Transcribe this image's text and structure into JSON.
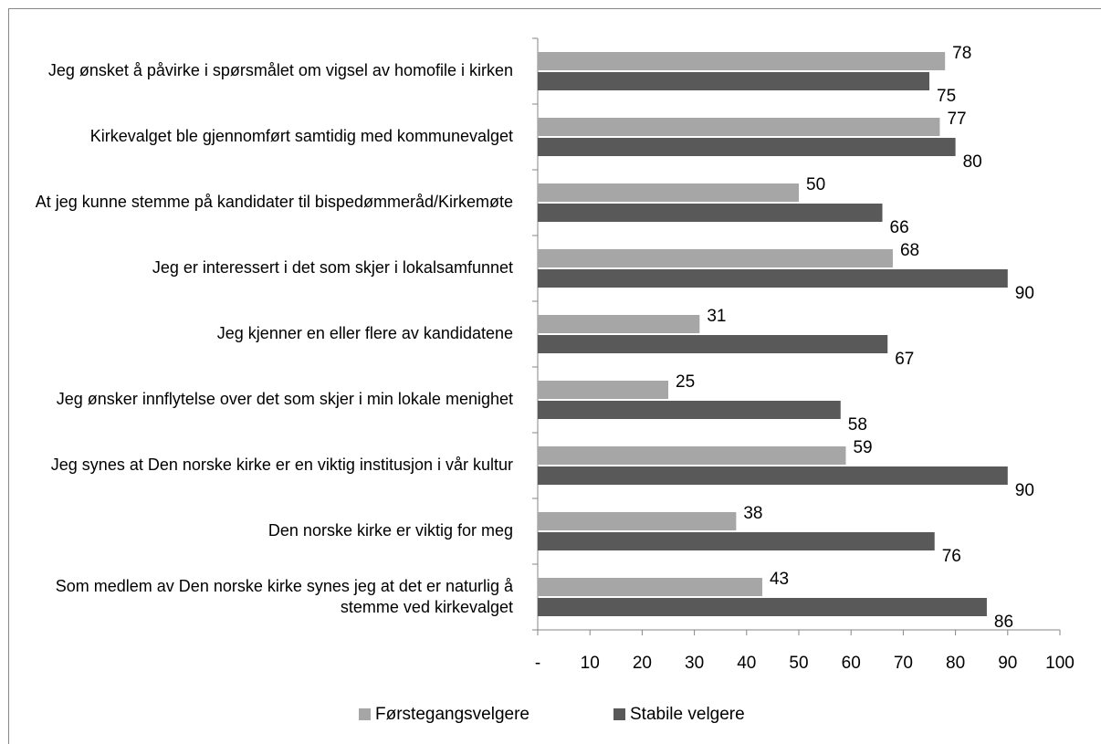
{
  "chart_data": {
    "type": "bar",
    "orientation": "horizontal",
    "categories": [
      "Jeg ønsket å påvirke i spørsmålet om vigsel av homofile i kirken",
      "Kirkevalget ble gjennomført samtidig med kommunevalget",
      "At jeg kunne stemme på kandidater til bispedømmeråd/Kirkemøte",
      "Jeg er interessert i det som skjer i lokalsamfunnet",
      "Jeg kjenner en eller flere av kandidatene",
      "Jeg ønsker innflytelse over det som skjer i min lokale menighet",
      "Jeg synes at Den norske kirke er en viktig institusjon i vår kultur",
      "Den norske kirke er viktig for meg",
      "Som medlem av Den norske kirke synes jeg at det er naturlig å stemme ved kirkevalget"
    ],
    "series": [
      {
        "name": "Førstegangsvelgere",
        "color": "#a6a6a6",
        "values": [
          78,
          77,
          50,
          68,
          31,
          25,
          59,
          38,
          43
        ]
      },
      {
        "name": "Stabile velgere",
        "color": "#595959",
        "values": [
          75,
          80,
          66,
          90,
          67,
          58,
          90,
          76,
          86
        ]
      }
    ],
    "xlim": [
      0,
      100
    ],
    "xticks": [
      {
        "value": 0,
        "label": "-"
      },
      10,
      20,
      30,
      40,
      50,
      60,
      70,
      80,
      90,
      100
    ],
    "legend": "bottom"
  }
}
